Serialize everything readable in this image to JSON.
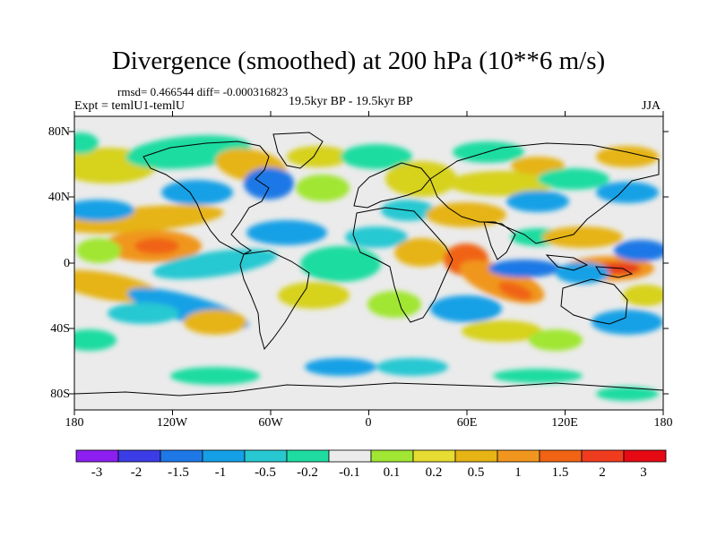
{
  "title": "Divergence (smoothed) at 200 hPa (10**6 m/s)",
  "stats": "rmsd= 0.466544 diff= -0.000316823",
  "experiment": "Expt = temlU1-temlU",
  "period": "19.5kyr BP - 19.5kyr BP",
  "season": "JJA",
  "lat_ticks": [
    "80N",
    "40N",
    "0",
    "40S",
    "80S"
  ],
  "lon_ticks": [
    "180",
    "120W",
    "60W",
    "0",
    "60E",
    "120E",
    "180"
  ],
  "colorbar": {
    "colors": [
      "#8c1ef0",
      "#3c3ce6",
      "#1e78e6",
      "#14a0e6",
      "#28c8d2",
      "#1edca0",
      "#ebebeb",
      "#a0e632",
      "#e6dc32",
      "#e6b414",
      "#f0961e",
      "#f06414",
      "#f03c1e",
      "#e60a14"
    ],
    "labels": [
      "-3",
      "-2",
      "-1.5",
      "-1",
      "-0.5",
      "-0.2",
      "-0.1",
      "0.1",
      "0.2",
      "0.5",
      "1",
      "1.5",
      "2",
      "3"
    ]
  },
  "field_colors": {
    "neutral": "#ebebeb",
    "weak_pos": "#a0e632",
    "pos": "#d7d21e",
    "mod_pos": "#e6b414",
    "strong_pos": "#f0961e",
    "very_pos": "#f06414",
    "extreme_pos": "#e63c1e",
    "weak_neg": "#1edca0",
    "neg": "#28c8d2",
    "mod_neg": "#14a0e6",
    "strong_neg": "#1e78e6",
    "very_neg": "#3c3ce6"
  }
}
